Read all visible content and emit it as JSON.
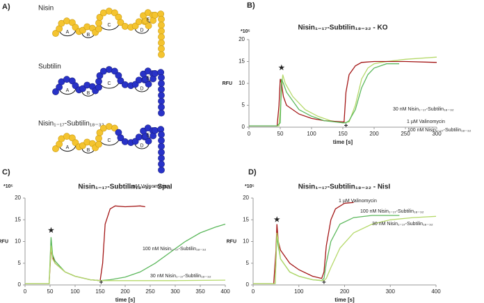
{
  "panel_a": {
    "label": "A)",
    "molecules": [
      {
        "name": "Nisin",
        "rings": [
          "A",
          "B",
          "C",
          "D",
          "E"
        ]
      },
      {
        "name": "Subtilin",
        "rings": [
          "A",
          "B",
          "C",
          "D",
          "E"
        ]
      },
      {
        "name": "Nisin₁₋₁₇-Subtilin₁₈₋₃₂",
        "rings": [
          "A",
          "B",
          "C",
          "D",
          "E"
        ]
      }
    ]
  },
  "chart_data": [
    {
      "type": "line",
      "panel_label": "B)",
      "title": "Nisin₁₋₁₇-Subtilin₁₈₋₃₂  - KO",
      "y_unit": "*10⁵",
      "xlabel": "time [s]",
      "ylabel": "RFU",
      "xlim": [
        0,
        300
      ],
      "ylim": [
        0,
        20
      ],
      "xticks": [
        0,
        50,
        100,
        150,
        200,
        250,
        300
      ],
      "yticks": [
        0,
        5,
        10,
        15,
        20
      ],
      "annotations": [
        {
          "text": "★",
          "x": 52,
          "y": 13.5
        },
        {
          "text": "+",
          "x": 155,
          "y": 0.3
        }
      ],
      "series": [
        {
          "name": "30 nM Nisin₁₋₁₇-Subtilin₁₈₋₃₂",
          "color": "#b5d96a",
          "x": [
            0,
            48,
            52,
            54,
            58,
            70,
            90,
            110,
            130,
            150,
            160,
            170,
            180,
            190,
            200,
            220,
            250,
            300
          ],
          "values": [
            0.3,
            0.3,
            8,
            12,
            10,
            7,
            4,
            2.5,
            1.5,
            1,
            1.2,
            5,
            11,
            13.5,
            14.5,
            15,
            15.5,
            16
          ]
        },
        {
          "name": "1 µM Valinomycin",
          "color": "#a31515",
          "x": [
            0,
            45,
            48,
            50,
            52,
            55,
            60,
            80,
            100,
            120,
            150,
            152,
            155,
            160,
            170,
            180,
            200,
            250,
            300
          ],
          "values": [
            0.3,
            0.3,
            5,
            11,
            10,
            7,
            5,
            3,
            2,
            1.5,
            1.2,
            1.2,
            8,
            12,
            14,
            14.8,
            15,
            15,
            14.8
          ]
        },
        {
          "name": "100 nM Nisin₁₋₁₇-Subtilin₁₈₋₃₂",
          "color": "#5cb85c",
          "x": [
            0,
            45,
            50,
            52,
            55,
            60,
            80,
            100,
            120,
            150,
            155,
            160,
            170,
            180,
            190,
            200,
            220,
            240
          ],
          "values": [
            0.3,
            0.3,
            1,
            11,
            10,
            8,
            4,
            2.5,
            1.5,
            1,
            1,
            1.5,
            4,
            9,
            12,
            13.5,
            14.5,
            14.5
          ]
        }
      ]
    },
    {
      "type": "line",
      "panel_label": "C)",
      "title": "Nisin₁₋₁₇-Subtilin₁₈₋₃₂  - SpaI",
      "y_unit": "*10⁵",
      "xlabel": "time [s]",
      "ylabel": "RFU",
      "xlim": [
        0,
        400
      ],
      "ylim": [
        0,
        20
      ],
      "xticks": [
        0,
        50,
        100,
        150,
        200,
        250,
        300,
        350,
        400
      ],
      "yticks": [
        0,
        5,
        10,
        15,
        20
      ],
      "annotations": [
        {
          "text": "★",
          "x": 52,
          "y": 12.5
        },
        {
          "text": "+",
          "x": 152,
          "y": 0.5
        }
      ],
      "series": [
        {
          "name": "1 µM Valinomycin",
          "color": "#a31515",
          "x": [
            0,
            48,
            52,
            55,
            60,
            80,
            100,
            130,
            150,
            155,
            160,
            170,
            180,
            200,
            230,
            240
          ],
          "values": [
            0.3,
            0.3,
            8,
            6.5,
            5,
            3,
            2,
            1.2,
            1,
            5,
            14,
            17.5,
            18.2,
            18,
            18.2,
            18
          ]
        },
        {
          "name": "100 nM Nisin₁₋₁₇-Subtilin₁₈₋₃₂",
          "color": "#5cb85c",
          "x": [
            0,
            48,
            52,
            55,
            60,
            80,
            100,
            130,
            150,
            170,
            200,
            230,
            260,
            290,
            320,
            350,
            380,
            400
          ],
          "values": [
            0.3,
            0.3,
            11,
            7,
            5.5,
            3,
            2,
            1.2,
            1,
            1.2,
            1.8,
            3,
            5,
            7.5,
            10,
            12,
            13.3,
            14
          ]
        },
        {
          "name": "30 nM Nisin₁₋₁₇-Subtilin₁₈₋₃₂",
          "color": "#b5d96a",
          "x": [
            0,
            48,
            52,
            55,
            60,
            80,
            100,
            130,
            150,
            200,
            300,
            400
          ],
          "values": [
            0.3,
            0.3,
            9,
            6,
            5,
            3,
            2,
            1.2,
            1,
            1,
            1,
            1.1
          ]
        }
      ]
    },
    {
      "type": "line",
      "panel_label": "D)",
      "title": "Nisin₁₋₁₇-Subtilin₁₈₋₃₂  - NisI",
      "y_unit": "*10⁵",
      "xlabel": "time [s]",
      "ylabel": "RFU",
      "xlim": [
        0,
        400
      ],
      "ylim": [
        0,
        20
      ],
      "xticks": [
        0,
        100,
        200,
        300,
        400
      ],
      "yticks": [
        0,
        5,
        10,
        15,
        20
      ],
      "annotations": [
        {
          "text": "★",
          "x": 52,
          "y": 15
        },
        {
          "text": "+",
          "x": 155,
          "y": 0.5
        }
      ],
      "series": [
        {
          "name": "1 µM Valinomycin",
          "color": "#a31515",
          "x": [
            0,
            45,
            50,
            52,
            55,
            60,
            80,
            100,
            130,
            150,
            155,
            160,
            170,
            180,
            200,
            220
          ],
          "values": [
            0.3,
            0.3,
            8,
            14,
            10,
            8,
            5,
            3.5,
            2,
            1.5,
            3,
            9,
            15,
            17.5,
            18.8,
            19
          ]
        },
        {
          "name": "100 nM Nisin₁₋₁₇-Subtilin₁₈₋₃₂",
          "color": "#5cb85c",
          "x": [
            0,
            48,
            52,
            55,
            60,
            80,
            100,
            130,
            150,
            155,
            160,
            170,
            190,
            220,
            260,
            300,
            320
          ],
          "values": [
            0.3,
            0.3,
            11,
            9,
            6,
            3,
            2,
            1.2,
            1,
            1.5,
            5,
            10,
            14,
            15.5,
            16,
            16,
            16
          ]
        },
        {
          "name": "30 nM Nisin₁₋₁₇-Subtilin₁₈₋₃₂",
          "color": "#b5d96a",
          "x": [
            0,
            48,
            52,
            55,
            60,
            80,
            100,
            130,
            155,
            160,
            170,
            190,
            220,
            260,
            300,
            350,
            400
          ],
          "values": [
            0.3,
            0.3,
            12,
            10,
            6,
            3,
            2,
            1.2,
            1,
            1.5,
            4,
            8.5,
            12,
            14,
            15,
            15.5,
            15.8
          ]
        }
      ]
    }
  ]
}
